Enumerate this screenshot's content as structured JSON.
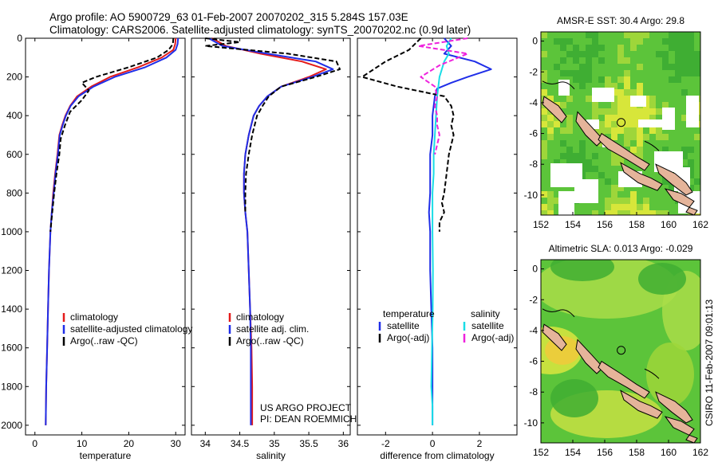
{
  "header": {
    "title_line1": "Argo profile: AO 5900729_63 01-Feb-2007 20070202_315 5.284S 157.03E",
    "title_line2": "Climatology: CARS2006. Satellite-adjusted climatology: synTS_20070202.nc (0.9d later)"
  },
  "side_text": "CSIRO 11-Feb-2007 09:01:13",
  "colors": {
    "climatology": "#e41b1b",
    "satellite": "#1f2ee8",
    "argo": "#000000",
    "salinity_satellite": "#19dde6",
    "salinity_argo": "#ee22dd",
    "land": "#e5b49a",
    "ocean_green": "#5cc43a",
    "ocean_yellow": "#d7e63a"
  },
  "chart_data": [
    {
      "type": "line",
      "panel": "temperature",
      "xlabel": "temperature",
      "ylabel": "",
      "xlim": [
        -2,
        32
      ],
      "ylim": [
        2050,
        0
      ],
      "xticks": [
        0,
        10,
        20,
        30
      ],
      "yticks": [
        0,
        200,
        400,
        600,
        800,
        1000,
        1200,
        1400,
        1600,
        1800,
        2000
      ],
      "legend": [
        "climatology",
        "satellite-adjusted climatology",
        "Argo(..raw -QC)"
      ],
      "series": [
        {
          "name": "climatology",
          "color": "#e41b1b",
          "dash": "",
          "x": [
            30.0,
            29.9,
            29.5,
            27.0,
            22.0,
            16.0,
            12.0,
            9.0,
            7.5,
            6.5,
            5.8,
            5.2,
            4.8,
            4.3,
            3.9,
            3.6,
            3.3,
            3.0,
            2.8,
            2.6,
            2.4,
            2.3
          ],
          "y": [
            0,
            30,
            60,
            100,
            150,
            200,
            250,
            300,
            350,
            400,
            450,
            500,
            600,
            700,
            800,
            900,
            1000,
            1200,
            1400,
            1600,
            1800,
            2000
          ]
        },
        {
          "name": "satellite-adjusted climatology",
          "color": "#1f2ee8",
          "dash": "",
          "x": [
            30.5,
            30.4,
            30.0,
            28.0,
            23.5,
            17.0,
            12.5,
            9.3,
            7.6,
            6.6,
            5.9,
            5.3,
            4.9,
            4.4,
            4.0,
            3.6,
            3.3,
            3.0,
            2.8,
            2.6,
            2.4,
            2.3
          ],
          "y": [
            0,
            30,
            60,
            100,
            150,
            200,
            250,
            300,
            350,
            400,
            450,
            500,
            600,
            700,
            800,
            900,
            1000,
            1200,
            1400,
            1600,
            1800,
            2000
          ]
        },
        {
          "name": "Argo(..raw -QC)",
          "color": "#000000",
          "dash": "6,3",
          "x": [
            29.5,
            29.4,
            28.5,
            26.0,
            20.0,
            13.0,
            10.0,
            11.5,
            10.0,
            7.5,
            6.4,
            5.5,
            5.2,
            4.6,
            4.1,
            3.7,
            3.3
          ],
          "y": [
            0,
            30,
            60,
            100,
            150,
            200,
            230,
            270,
            320,
            380,
            450,
            520,
            600,
            700,
            800,
            900,
            1000
          ]
        }
      ]
    },
    {
      "type": "line",
      "panel": "salinity",
      "xlabel": "salinity",
      "ylabel": "",
      "xlim": [
        33.8,
        36.1
      ],
      "ylim": [
        2050,
        0
      ],
      "xticks": [
        34,
        34.5,
        35,
        35.5,
        36
      ],
      "legend": [
        "climatology",
        "satellite adj. clim.",
        "Argo(..raw -QC)"
      ],
      "annotation_line1": "US ARGO PROJECT",
      "annotation_line2": "PI: DEAN ROEMMICH",
      "series": [
        {
          "name": "climatology",
          "color": "#e41b1b",
          "dash": "",
          "x": [
            34.1,
            34.3,
            34.8,
            35.4,
            35.75,
            35.5,
            35.1,
            34.9,
            34.78,
            34.7,
            34.63,
            34.58,
            34.56,
            34.56,
            34.58,
            34.61,
            34.63,
            34.65,
            34.67,
            34.68,
            34.68
          ],
          "y": [
            0,
            40,
            80,
            120,
            160,
            200,
            250,
            300,
            350,
            400,
            500,
            600,
            700,
            800,
            900,
            1000,
            1200,
            1400,
            1600,
            1800,
            2000
          ]
        },
        {
          "name": "satellite adj. clim.",
          "color": "#1f2ee8",
          "dash": "",
          "x": [
            34.05,
            34.25,
            34.9,
            35.6,
            35.85,
            35.55,
            35.1,
            34.9,
            34.78,
            34.7,
            34.63,
            34.58,
            34.56,
            34.56,
            34.58,
            34.61,
            34.63,
            34.65,
            34.66,
            34.66,
            34.66
          ],
          "y": [
            0,
            40,
            80,
            120,
            160,
            200,
            250,
            300,
            350,
            400,
            500,
            600,
            700,
            800,
            900,
            1000,
            1200,
            1400,
            1600,
            1800,
            2000
          ]
        },
        {
          "name": "Argo(..raw -QC)",
          "color": "#000000",
          "dash": "6,3",
          "x": [
            34.0,
            34.5,
            34.0,
            35.2,
            35.9,
            35.95,
            35.6,
            35.1,
            34.92,
            34.83,
            34.75,
            34.68,
            34.63,
            34.59,
            34.58,
            34.58
          ],
          "y": [
            0,
            20,
            40,
            80,
            120,
            160,
            200,
            250,
            300,
            350,
            400,
            500,
            600,
            700,
            800,
            900
          ]
        }
      ]
    },
    {
      "type": "line",
      "panel": "difference",
      "xlabel": "difference from climatology",
      "ylabel": "",
      "xlim": [
        -3.2,
        3.6
      ],
      "ylim": [
        2050,
        0
      ],
      "xticks": [
        -2,
        0,
        2
      ],
      "legend_header_temperature": "temperature",
      "legend_header_salinity": "salinity",
      "legend": [
        "satellite",
        "Argo(-adj)",
        "satellite",
        "Argo(-adj)"
      ],
      "series": [
        {
          "name": "temperature satellite",
          "color": "#1f2ee8",
          "dash": "",
          "x": [
            0.5,
            0.8,
            0.5,
            1.8,
            2.5,
            1.5,
            0.8,
            0.2,
            0.1,
            0.05,
            0,
            0,
            -0.1,
            -0.1,
            -0.1,
            -0.15,
            -0.1,
            -0.1,
            -0.05,
            0,
            0
          ],
          "y": [
            0,
            40,
            80,
            120,
            160,
            200,
            230,
            260,
            300,
            350,
            400,
            500,
            600,
            700,
            800,
            900,
            1000,
            1200,
            1400,
            1600,
            2000
          ]
        },
        {
          "name": "temperature Argo(-adj)",
          "color": "#000000",
          "dash": "6,3",
          "x": [
            -0.5,
            -1.0,
            -2.0,
            -3.0,
            -1.5,
            0.5,
            0.8,
            0.9,
            0.8,
            0.9,
            0.7,
            0.6,
            0.5,
            0.4,
            0.5,
            0.3,
            0.3
          ],
          "y": [
            0,
            60,
            120,
            200,
            250,
            300,
            350,
            400,
            450,
            500,
            600,
            700,
            800,
            850,
            900,
            950,
            1000
          ]
        },
        {
          "name": "salinity satellite",
          "color": "#19dde6",
          "dash": "",
          "x": [
            0.8,
            0.6,
            0.7,
            0.5,
            0.4,
            0.3,
            0.2,
            0.15,
            0.1,
            0.05,
            0.05,
            0,
            0,
            0.02,
            0.01,
            -0.05,
            0,
            0
          ],
          "y": [
            0,
            40,
            80,
            120,
            160,
            200,
            300,
            400,
            500,
            600,
            700,
            800,
            1000,
            1200,
            1400,
            1800,
            1900,
            2000
          ]
        },
        {
          "name": "salinity Argo(-adj)",
          "color": "#ee22dd",
          "dash": "6,3",
          "x": [
            1.5,
            -0.6,
            1.5,
            0.3,
            -0.5,
            0.1,
            0.2,
            0.1,
            0.2,
            0.2,
            0.3,
            0.2,
            0.1
          ],
          "y": [
            0,
            40,
            80,
            140,
            200,
            250,
            300,
            350,
            400,
            450,
            500,
            550,
            600
          ]
        }
      ]
    },
    {
      "type": "heatmap",
      "panel": "sst_map",
      "title": "AMSR-E  SST: 30.4  Argo: 29.8",
      "xlim": [
        152,
        162
      ],
      "ylim": [
        -11.3,
        0.6
      ],
      "xticks": [
        152,
        154,
        156,
        158,
        160,
        162
      ],
      "yticks": [
        0,
        -2,
        -4,
        -6,
        -8,
        -10
      ],
      "marker": {
        "lon": 157.03,
        "lat": -5.284
      }
    },
    {
      "type": "heatmap",
      "panel": "sla_map",
      "title": "Altimetric SLA: 0.013  Argo: -0.029",
      "xlim": [
        152,
        162
      ],
      "ylim": [
        -11.3,
        0.6
      ],
      "xticks": [
        152,
        154,
        156,
        158,
        160,
        162
      ],
      "yticks": [
        0,
        -2,
        -4,
        -6,
        -8,
        -10
      ],
      "marker": {
        "lon": 157.03,
        "lat": -5.284
      }
    }
  ]
}
